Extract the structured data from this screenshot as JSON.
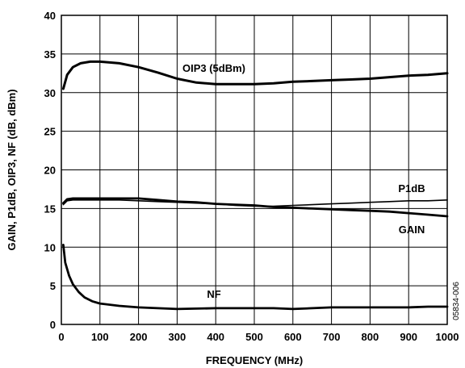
{
  "chart_data": {
    "type": "line",
    "xlabel": "FREQUENCY (MHz)",
    "ylabel": "GAIN, P1dB, OIP3, NF (dB, dBm)",
    "xlim": [
      0,
      1000
    ],
    "ylim": [
      0,
      40
    ],
    "xticks": [
      "0",
      "100",
      "200",
      "300",
      "400",
      "500",
      "600",
      "700",
      "800",
      "900",
      "1000"
    ],
    "yticks": [
      "0",
      "5",
      "10",
      "15",
      "20",
      "25",
      "30",
      "35",
      "40"
    ],
    "grid": true,
    "figure_id": "05834-006",
    "series": [
      {
        "name": "OIP3 (5dBm)",
        "x": [
          5,
          15,
          30,
          50,
          75,
          100,
          150,
          200,
          250,
          300,
          350,
          400,
          450,
          500,
          550,
          600,
          650,
          700,
          750,
          800,
          850,
          900,
          950,
          1000
        ],
        "values": [
          30.5,
          32.3,
          33.3,
          33.8,
          34.0,
          34.0,
          33.8,
          33.3,
          32.6,
          31.8,
          31.3,
          31.1,
          31.1,
          31.1,
          31.2,
          31.4,
          31.5,
          31.6,
          31.7,
          31.8,
          32.0,
          32.2,
          32.3,
          32.5
        ],
        "color": "#000000"
      },
      {
        "name": "P1dB",
        "x": [
          5,
          15,
          30,
          50,
          100,
          150,
          200,
          250,
          300,
          350,
          400,
          450,
          500,
          550,
          600,
          650,
          700,
          750,
          800,
          850,
          900,
          950,
          1000
        ],
        "values": [
          15.5,
          16.0,
          16.1,
          16.1,
          16.1,
          16.1,
          16.0,
          15.9,
          15.8,
          15.7,
          15.6,
          15.4,
          15.3,
          15.3,
          15.4,
          15.5,
          15.6,
          15.7,
          15.8,
          15.9,
          16.0,
          16.0,
          16.1
        ],
        "color": "#000000"
      },
      {
        "name": "GAIN",
        "x": [
          5,
          15,
          30,
          50,
          100,
          150,
          200,
          250,
          300,
          350,
          400,
          450,
          500,
          550,
          600,
          650,
          700,
          750,
          800,
          850,
          900,
          950,
          1000
        ],
        "values": [
          15.7,
          16.2,
          16.3,
          16.3,
          16.3,
          16.3,
          16.3,
          16.1,
          15.9,
          15.8,
          15.6,
          15.5,
          15.4,
          15.2,
          15.1,
          15.0,
          14.9,
          14.8,
          14.7,
          14.6,
          14.4,
          14.2,
          14.0
        ],
        "color": "#000000"
      },
      {
        "name": "NF",
        "x": [
          5,
          10,
          20,
          30,
          45,
          60,
          80,
          100,
          150,
          200,
          250,
          300,
          400,
          500,
          550,
          600,
          650,
          700,
          800,
          900,
          950,
          1000
        ],
        "values": [
          10.3,
          8.0,
          6.3,
          5.2,
          4.2,
          3.5,
          3.0,
          2.7,
          2.4,
          2.2,
          2.1,
          2.0,
          2.1,
          2.1,
          2.1,
          2.0,
          2.1,
          2.2,
          2.2,
          2.2,
          2.3,
          2.3
        ],
        "color": "#000000"
      }
    ]
  }
}
